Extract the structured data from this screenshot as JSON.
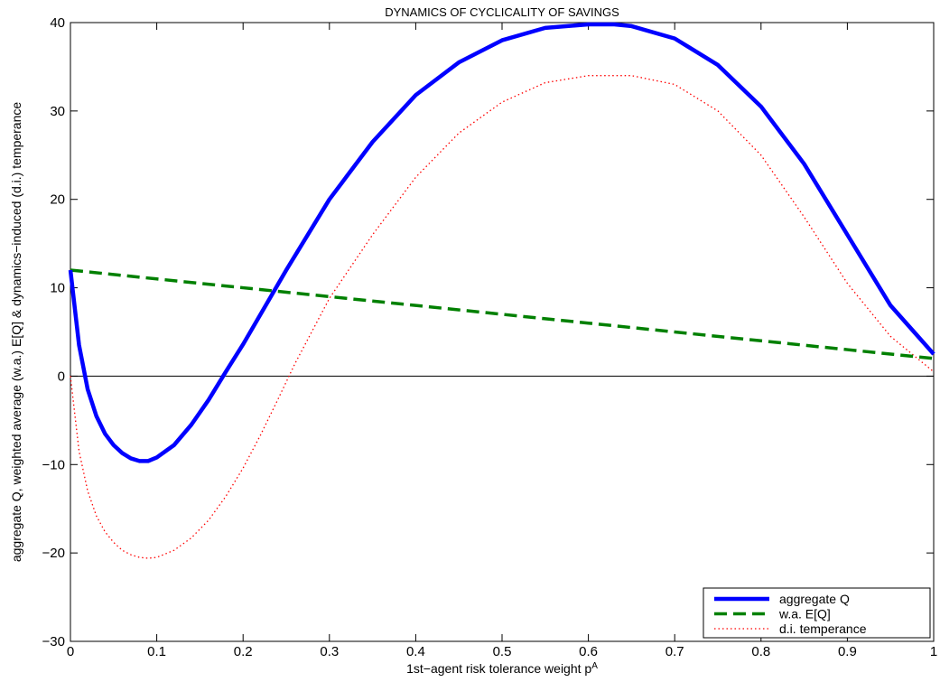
{
  "chart_data": {
    "type": "line",
    "title": "DYNAMICS OF CYCLICALITY OF SAVINGS",
    "xlabel": "1st−agent risk tolerance weight p",
    "xlabel_superscript": "A",
    "ylabel": "aggregate Q, weighted average (w.a.) E[Q] & dynamics−induced (d.i.) temperance",
    "xlim": [
      0,
      1
    ],
    "ylim": [
      -30,
      40
    ],
    "xticks": [
      0,
      0.1,
      0.2,
      0.3,
      0.4,
      0.5,
      0.6,
      0.7,
      0.8,
      0.9,
      1
    ],
    "xtick_labels": [
      "0",
      "0.1",
      "0.2",
      "0.3",
      "0.4",
      "0.5",
      "0.6",
      "0.7",
      "0.8",
      "0.9",
      "1"
    ],
    "yticks": [
      -30,
      -20,
      -10,
      0,
      10,
      20,
      30,
      40
    ],
    "ytick_labels": [
      "−30",
      "−20",
      "−10",
      "0",
      "10",
      "20",
      "30",
      "40"
    ],
    "grid": false,
    "zero_line": true,
    "legend_position": "bottom-right",
    "series": [
      {
        "name": "aggregate Q",
        "color": "#0000ff",
        "style": "solid",
        "x": [
          0,
          0.01,
          0.02,
          0.03,
          0.04,
          0.05,
          0.06,
          0.07,
          0.08,
          0.09,
          0.1,
          0.12,
          0.14,
          0.16,
          0.18,
          0.2,
          0.25,
          0.3,
          0.35,
          0.4,
          0.45,
          0.5,
          0.55,
          0.6,
          0.63,
          0.65,
          0.7,
          0.75,
          0.8,
          0.85,
          0.9,
          0.95,
          1.0
        ],
        "y": [
          12,
          3.5,
          -1.5,
          -4.5,
          -6.5,
          -7.8,
          -8.7,
          -9.3,
          -9.6,
          -9.6,
          -9.2,
          -7.8,
          -5.5,
          -2.7,
          0.5,
          3.6,
          12,
          20,
          26.5,
          31.8,
          35.5,
          38,
          39.4,
          39.8,
          39.8,
          39.6,
          38.2,
          35.2,
          30.5,
          24,
          16,
          8,
          2.5
        ]
      },
      {
        "name": "w.a. E[Q]",
        "color": "#008000",
        "style": "dashed",
        "x": [
          0,
          0.1,
          0.2,
          0.3,
          0.4,
          0.5,
          0.6,
          0.7,
          0.8,
          0.9,
          1.0
        ],
        "y": [
          12,
          11,
          10,
          9,
          8,
          7,
          6,
          5,
          4,
          3,
          2
        ]
      },
      {
        "name": "d.i. temperance",
        "color": "#ff0000",
        "style": "dotted",
        "x": [
          0,
          0.01,
          0.02,
          0.03,
          0.04,
          0.05,
          0.06,
          0.07,
          0.08,
          0.09,
          0.1,
          0.12,
          0.14,
          0.16,
          0.18,
          0.2,
          0.22,
          0.24,
          0.26,
          0.28,
          0.3,
          0.35,
          0.4,
          0.45,
          0.5,
          0.55,
          0.6,
          0.65,
          0.7,
          0.75,
          0.8,
          0.85,
          0.9,
          0.95,
          1.0
        ],
        "y": [
          0,
          -8.5,
          -13,
          -15.8,
          -17.6,
          -18.8,
          -19.7,
          -20.2,
          -20.5,
          -20.6,
          -20.5,
          -19.7,
          -18.3,
          -16.3,
          -13.6,
          -10.4,
          -6.7,
          -2.7,
          1.4,
          5.1,
          8.8,
          16,
          22.5,
          27.5,
          31,
          33.2,
          34,
          34,
          33,
          30,
          25,
          18,
          10.5,
          4.5,
          0.5
        ]
      }
    ]
  }
}
